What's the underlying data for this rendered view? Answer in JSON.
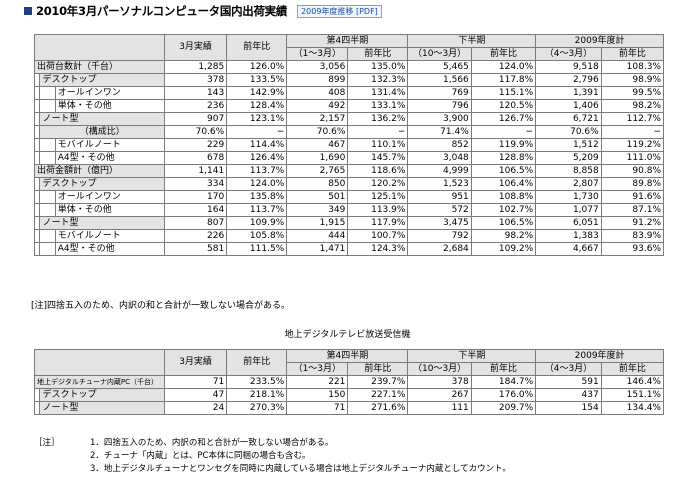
{
  "header": {
    "title": "2010年3月パーソナルコンピュータ国内出荷実績",
    "pdf_link": "2009年度推移 [PDF]"
  },
  "columns": {
    "march": "3月実績",
    "yoy": "前年比",
    "q4": "第4四半期",
    "q4_period": "（1〜3月）",
    "h2": "下半期",
    "h2_period": "（10〜3月）",
    "fy": "2009年度計",
    "fy_period": "（4〜3月）"
  },
  "table1": {
    "rows": [
      {
        "label": "出荷台数計（千台）",
        "v": [
          "1,285",
          "126.0%",
          "3,056",
          "135.0%",
          "5,465",
          "124.0%",
          "9,518",
          "108.3%"
        ]
      },
      {
        "label": "デスクトップ",
        "v": [
          "378",
          "133.5%",
          "899",
          "132.3%",
          "1,566",
          "117.8%",
          "2,796",
          "98.9%"
        ]
      },
      {
        "label": "オールインワン",
        "v": [
          "143",
          "142.9%",
          "408",
          "131.4%",
          "769",
          "115.1%",
          "1,391",
          "99.5%"
        ]
      },
      {
        "label": "単体・その他",
        "v": [
          "236",
          "128.4%",
          "492",
          "133.1%",
          "796",
          "120.5%",
          "1,406",
          "98.2%"
        ]
      },
      {
        "label": "ノート型",
        "v": [
          "907",
          "123.1%",
          "2,157",
          "136.2%",
          "3,900",
          "126.7%",
          "6,721",
          "112.7%"
        ]
      },
      {
        "label": "（構成比）",
        "v": [
          "70.6%",
          "−",
          "70.6%",
          "−",
          "71.4%",
          "−",
          "70.6%",
          "−"
        ]
      },
      {
        "label": "モバイルノート",
        "v": [
          "229",
          "114.4%",
          "467",
          "110.1%",
          "852",
          "119.9%",
          "1,512",
          "119.2%"
        ]
      },
      {
        "label": "A4型・その他",
        "v": [
          "678",
          "126.4%",
          "1,690",
          "145.7%",
          "3,048",
          "128.8%",
          "5,209",
          "111.0%"
        ]
      },
      {
        "label": "出荷金額計（億円）",
        "v": [
          "1,141",
          "113.7%",
          "2,765",
          "118.6%",
          "4,999",
          "106.5%",
          "8,858",
          "90.8%"
        ]
      },
      {
        "label": "デスクトップ",
        "v": [
          "334",
          "124.0%",
          "850",
          "120.2%",
          "1,523",
          "106.4%",
          "2,807",
          "89.8%"
        ]
      },
      {
        "label": "オールインワン",
        "v": [
          "170",
          "135.8%",
          "501",
          "125.1%",
          "951",
          "108.8%",
          "1,730",
          "91.6%"
        ]
      },
      {
        "label": "単体・その他",
        "v": [
          "164",
          "113.7%",
          "349",
          "113.9%",
          "572",
          "102.7%",
          "1,077",
          "87.1%"
        ]
      },
      {
        "label": "ノート型",
        "v": [
          "807",
          "109.9%",
          "1,915",
          "117.9%",
          "3,475",
          "106.5%",
          "6,051",
          "91.2%"
        ]
      },
      {
        "label": "モバイルノート",
        "v": [
          "226",
          "105.8%",
          "444",
          "100.7%",
          "792",
          "98.2%",
          "1,383",
          "83.9%"
        ]
      },
      {
        "label": "A4型・その他",
        "v": [
          "581",
          "111.5%",
          "1,471",
          "124.3%",
          "2,684",
          "109.2%",
          "4,667",
          "93.6%"
        ]
      }
    ],
    "note": "[注]四捨五入のため、内訳の和と合計が一致しない場合がある。"
  },
  "table2": {
    "title": "地上デジタルテレビ放送受信機",
    "rows": [
      {
        "label": "地上デジタルチューナ内蔵PC（千台）",
        "v": [
          "71",
          "233.5%",
          "221",
          "239.7%",
          "378",
          "184.7%",
          "591",
          "146.4%"
        ]
      },
      {
        "label": "デスクトップ",
        "v": [
          "47",
          "218.1%",
          "150",
          "227.1%",
          "267",
          "176.0%",
          "437",
          "151.1%"
        ]
      },
      {
        "label": "ノート型",
        "v": [
          "24",
          "270.3%",
          "71",
          "271.6%",
          "111",
          "209.7%",
          "154",
          "134.4%"
        ]
      }
    ]
  },
  "notes": {
    "label": "［注］",
    "items": [
      "1．四捨五入のため、内訳の和と合計が一致しない場合がある。",
      "2．チューナ「内蔵」とは、PC本体に同梱の場合も含む。",
      "3．地上デジタルチューナとワンセグを同時に内蔵している場合は地上デジタルチューナ内蔵としてカウント。"
    ]
  }
}
